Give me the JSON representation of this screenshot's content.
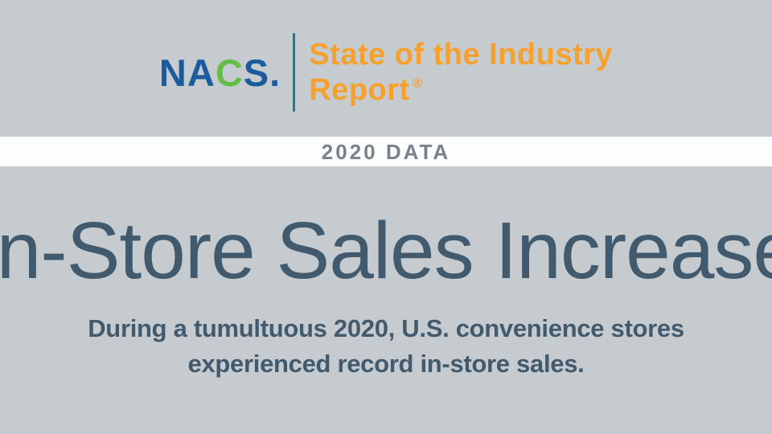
{
  "slide": {
    "brand": {
      "logo_part_na": "NA",
      "logo_part_c": "C",
      "logo_part_s": "S.",
      "report_title_line1": "State of the Industry",
      "report_title_line2": "Report",
      "registered_mark": "®"
    },
    "banner": {
      "label": "2020 DATA"
    },
    "headline": {
      "text": "In-Store Sales Increase"
    },
    "subtitle": {
      "line1": "During a tumultuous 2020, U.S. convenience stores",
      "line2": "experienced record in-store sales."
    },
    "colors": {
      "background": "#C5CBCE",
      "band_background": "#FDFEFE",
      "band_text": "#77828C",
      "logo_blue": "#1D5C9C",
      "logo_green": "#64BD47",
      "divider": "#3A6E84",
      "accent_orange": "#F6A02D",
      "text_dark": "#415A6D"
    }
  }
}
